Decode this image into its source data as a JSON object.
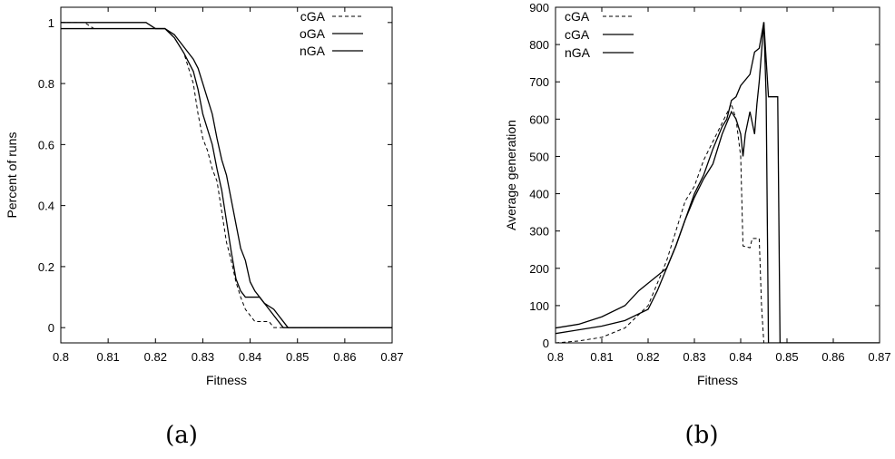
{
  "chart_data": [
    {
      "type": "line",
      "panel_label": "(a)",
      "title": "",
      "xlabel": "Fitness",
      "ylabel": "Percent of runs",
      "xlim": [
        0.8,
        0.87
      ],
      "ylim": [
        -0.05,
        1.05
      ],
      "x_ticks": [
        "0.8",
        "0.81",
        "0.82",
        "0.83",
        "0.84",
        "0.85",
        "0.86",
        "0.87"
      ],
      "y_ticks": [
        "0",
        "0.2",
        "0.4",
        "0.6",
        "0.8",
        "1"
      ],
      "legend_position": "top-right",
      "grid": false,
      "series": [
        {
          "name": "cGA",
          "dash": "dashed",
          "points": [
            [
              0.8,
              1.0
            ],
            [
              0.805,
              1.0
            ],
            [
              0.807,
              0.98
            ],
            [
              0.82,
              0.98
            ],
            [
              0.822,
              0.98
            ],
            [
              0.824,
              0.95
            ],
            [
              0.826,
              0.9
            ],
            [
              0.828,
              0.8
            ],
            [
              0.829,
              0.7
            ],
            [
              0.83,
              0.62
            ],
            [
              0.831,
              0.58
            ],
            [
              0.832,
              0.52
            ],
            [
              0.833,
              0.48
            ],
            [
              0.834,
              0.38
            ],
            [
              0.835,
              0.28
            ],
            [
              0.836,
              0.22
            ],
            [
              0.837,
              0.15
            ],
            [
              0.838,
              0.1
            ],
            [
              0.839,
              0.06
            ],
            [
              0.84,
              0.04
            ],
            [
              0.841,
              0.02
            ],
            [
              0.843,
              0.02
            ],
            [
              0.844,
              0.02
            ],
            [
              0.845,
              0.0
            ],
            [
              0.87,
              0.0
            ]
          ]
        },
        {
          "name": "oGA",
          "dash": "solid",
          "points": [
            [
              0.8,
              1.0
            ],
            [
              0.818,
              1.0
            ],
            [
              0.82,
              0.98
            ],
            [
              0.822,
              0.98
            ],
            [
              0.824,
              0.96
            ],
            [
              0.826,
              0.92
            ],
            [
              0.828,
              0.88
            ],
            [
              0.829,
              0.85
            ],
            [
              0.83,
              0.8
            ],
            [
              0.831,
              0.75
            ],
            [
              0.832,
              0.7
            ],
            [
              0.833,
              0.62
            ],
            [
              0.834,
              0.55
            ],
            [
              0.835,
              0.5
            ],
            [
              0.836,
              0.42
            ],
            [
              0.837,
              0.34
            ],
            [
              0.838,
              0.26
            ],
            [
              0.839,
              0.22
            ],
            [
              0.84,
              0.15
            ],
            [
              0.841,
              0.12
            ],
            [
              0.843,
              0.08
            ],
            [
              0.845,
              0.06
            ],
            [
              0.846,
              0.04
            ],
            [
              0.847,
              0.02
            ],
            [
              0.848,
              0.0
            ],
            [
              0.87,
              0.0
            ]
          ]
        },
        {
          "name": "nGA",
          "dash": "solid",
          "points": [
            [
              0.8,
              0.98
            ],
            [
              0.82,
              0.98
            ],
            [
              0.822,
              0.98
            ],
            [
              0.824,
              0.95
            ],
            [
              0.826,
              0.9
            ],
            [
              0.828,
              0.84
            ],
            [
              0.829,
              0.78
            ],
            [
              0.83,
              0.7
            ],
            [
              0.831,
              0.65
            ],
            [
              0.832,
              0.6
            ],
            [
              0.833,
              0.52
            ],
            [
              0.834,
              0.45
            ],
            [
              0.835,
              0.35
            ],
            [
              0.836,
              0.25
            ],
            [
              0.837,
              0.16
            ],
            [
              0.838,
              0.12
            ],
            [
              0.839,
              0.1
            ],
            [
              0.84,
              0.1
            ],
            [
              0.842,
              0.1
            ],
            [
              0.843,
              0.08
            ],
            [
              0.845,
              0.04
            ],
            [
              0.847,
              0.0
            ],
            [
              0.87,
              0.0
            ]
          ]
        }
      ]
    },
    {
      "type": "line",
      "panel_label": "(b)",
      "title": "",
      "xlabel": "Fitness",
      "ylabel": "Average generation",
      "xlim": [
        0.8,
        0.87
      ],
      "ylim": [
        0,
        900
      ],
      "x_ticks": [
        "0.8",
        "0.81",
        "0.82",
        "0.83",
        "0.84",
        "0.85",
        "0.86",
        "0.87"
      ],
      "y_ticks": [
        "0",
        "100",
        "200",
        "300",
        "400",
        "500",
        "600",
        "700",
        "800",
        "900"
      ],
      "legend_position": "top-left",
      "grid": false,
      "series": [
        {
          "name": "cGA",
          "dash": "dashed",
          "points": [
            [
              0.8,
              0
            ],
            [
              0.805,
              5
            ],
            [
              0.81,
              15
            ],
            [
              0.815,
              40
            ],
            [
              0.82,
              100
            ],
            [
              0.822,
              160
            ],
            [
              0.824,
              220
            ],
            [
              0.826,
              300
            ],
            [
              0.828,
              380
            ],
            [
              0.83,
              420
            ],
            [
              0.832,
              490
            ],
            [
              0.834,
              540
            ],
            [
              0.836,
              590
            ],
            [
              0.838,
              640
            ],
            [
              0.839,
              600
            ],
            [
              0.84,
              500
            ],
            [
              0.8405,
              260
            ],
            [
              0.842,
              255
            ],
            [
              0.8425,
              280
            ],
            [
              0.844,
              280
            ],
            [
              0.8445,
              100
            ],
            [
              0.845,
              0
            ],
            [
              0.87,
              0
            ]
          ]
        },
        {
          "name": "cGA",
          "dash": "solid",
          "points": [
            [
              0.8,
              40
            ],
            [
              0.805,
              50
            ],
            [
              0.81,
              70
            ],
            [
              0.815,
              100
            ],
            [
              0.818,
              140
            ],
            [
              0.82,
              160
            ],
            [
              0.822,
              180
            ],
            [
              0.824,
              200
            ],
            [
              0.826,
              260
            ],
            [
              0.828,
              330
            ],
            [
              0.83,
              390
            ],
            [
              0.832,
              440
            ],
            [
              0.834,
              480
            ],
            [
              0.836,
              560
            ],
            [
              0.837,
              590
            ],
            [
              0.838,
              620
            ],
            [
              0.839,
              600
            ],
            [
              0.84,
              560
            ],
            [
              0.8405,
              500
            ],
            [
              0.841,
              560
            ],
            [
              0.842,
              620
            ],
            [
              0.843,
              560
            ],
            [
              0.8435,
              640
            ],
            [
              0.844,
              700
            ],
            [
              0.845,
              860
            ],
            [
              0.8455,
              660
            ],
            [
              0.846,
              0
            ],
            [
              0.87,
              0
            ]
          ]
        },
        {
          "name": "nGA",
          "dash": "solid",
          "points": [
            [
              0.8,
              25
            ],
            [
              0.805,
              35
            ],
            [
              0.81,
              45
            ],
            [
              0.815,
              60
            ],
            [
              0.82,
              90
            ],
            [
              0.822,
              140
            ],
            [
              0.824,
              200
            ],
            [
              0.826,
              260
            ],
            [
              0.828,
              330
            ],
            [
              0.83,
              400
            ],
            [
              0.832,
              450
            ],
            [
              0.834,
              520
            ],
            [
              0.836,
              580
            ],
            [
              0.837,
              600
            ],
            [
              0.838,
              650
            ],
            [
              0.839,
              660
            ],
            [
              0.84,
              690
            ],
            [
              0.842,
              720
            ],
            [
              0.843,
              780
            ],
            [
              0.844,
              790
            ],
            [
              0.845,
              860
            ],
            [
              0.846,
              660
            ],
            [
              0.848,
              660
            ],
            [
              0.8485,
              0
            ],
            [
              0.87,
              0
            ]
          ]
        }
      ]
    }
  ]
}
